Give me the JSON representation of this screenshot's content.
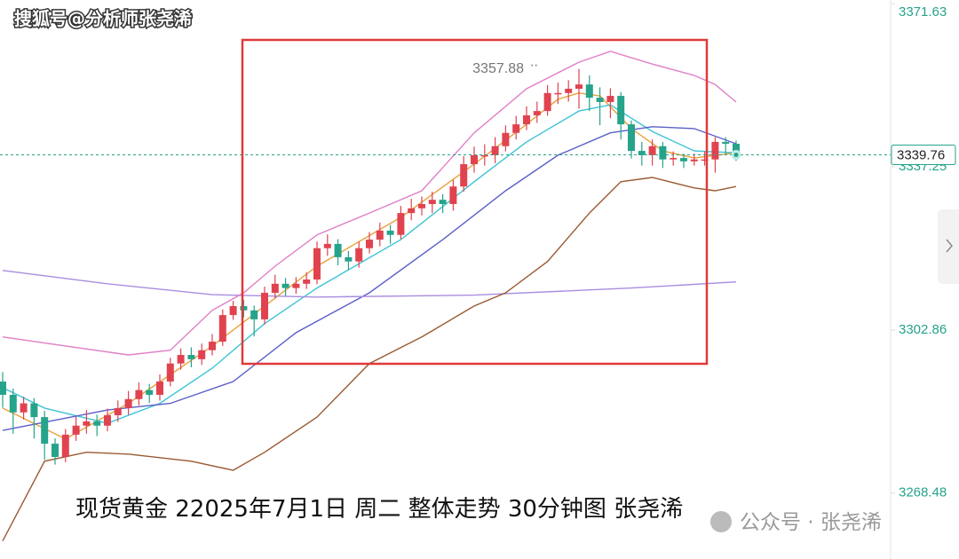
{
  "chart_data": {
    "type": "candlestick",
    "watermark": "搜狐号@分析师张尧浠",
    "caption": "现货黄金 22025年7月1日 周二 整体走势 30分钟图 张尧浠",
    "footer": "公众号 · 张尧浠",
    "up_color": "#e0434f",
    "down_color": "#26a38b",
    "ylim": [
      3254.6,
      3372.4
    ],
    "yticks": [
      3371.63,
      3337.25,
      3302.86,
      3268.48
    ],
    "open": [
      3292.0,
      3289.2,
      3285.5,
      3287.4,
      3284.5,
      3278.9,
      3276.1,
      3280.8,
      3282.7,
      3283.6,
      3282.7,
      3284.9,
      3286.4,
      3288.3,
      3290.2,
      3289.2,
      3292.0,
      3295.8,
      3297.6,
      3296.7,
      3298.6,
      3300.4,
      3306.0,
      3307.9,
      3307.0,
      3305.1,
      3310.7,
      3312.6,
      3311.7,
      3312.6,
      3313.5,
      3320.1,
      3321.0,
      3318.2,
      3317.3,
      3320.1,
      3321.9,
      3323.8,
      3322.9,
      3327.5,
      3328.5,
      3329.4,
      3330.3,
      3329.4,
      3333.1,
      3337.8,
      3339.7,
      3339.7,
      3341.6,
      3344.4,
      3346.2,
      3348.1,
      3349.0,
      3352.8,
      3352.8,
      3353.7,
      3354.6,
      3351.8,
      3350.9,
      3352.2,
      3346.2,
      3340.6,
      3339.7,
      3341.6,
      3338.8,
      3339.1,
      3338.4,
      3338.8,
      3338.8,
      3342.5,
      3342.1
    ],
    "high": [
      3294.0,
      3290.5,
      3288.8,
      3288.5,
      3285.8,
      3280.0,
      3282.0,
      3284.6,
      3286.0,
      3285.0,
      3286.3,
      3288.0,
      3290.0,
      3291.8,
      3291.5,
      3293.5,
      3297.0,
      3299.0,
      3299.2,
      3300.0,
      3302.0,
      3307.2,
      3309.0,
      3309.2,
      3308.0,
      3312.0,
      3314.5,
      3313.8,
      3314.0,
      3315.0,
      3321.5,
      3323.0,
      3322.0,
      3319.5,
      3321.5,
      3323.5,
      3325.5,
      3325.0,
      3329.0,
      3330.5,
      3331.0,
      3332.0,
      3331.5,
      3334.5,
      3339.5,
      3341.5,
      3342.0,
      3343.5,
      3346.0,
      3348.0,
      3350.0,
      3351.0,
      3354.5,
      3355.0,
      3355.5,
      3357.88,
      3356.5,
      3354.0,
      3353.8,
      3353.0,
      3347.0,
      3342.5,
      3343.0,
      3342.5,
      3340.5,
      3340.0,
      3340.0,
      3340.5,
      3343.5,
      3343.5,
      3342.8
    ],
    "low": [
      3286.5,
      3281.0,
      3284.0,
      3280.0,
      3275.5,
      3274.5,
      3275.0,
      3279.5,
      3281.0,
      3280.5,
      3281.5,
      3283.5,
      3285.0,
      3287.0,
      3287.5,
      3288.0,
      3291.0,
      3294.5,
      3295.0,
      3295.5,
      3297.5,
      3299.5,
      3305.0,
      3305.5,
      3301.5,
      3304.0,
      3309.5,
      3310.0,
      3310.5,
      3311.5,
      3312.5,
      3318.5,
      3316.5,
      3315.5,
      3316.0,
      3319.0,
      3320.5,
      3321.0,
      3322.0,
      3326.0,
      3327.0,
      3327.5,
      3327.5,
      3328.0,
      3332.0,
      3336.0,
      3337.5,
      3338.0,
      3340.5,
      3343.0,
      3345.0,
      3346.5,
      3348.0,
      3350.5,
      3351.0,
      3349.5,
      3349.0,
      3346.0,
      3347.5,
      3343.0,
      3339.0,
      3337.5,
      3337.5,
      3337.0,
      3337.5,
      3337.0,
      3337.5,
      3337.5,
      3336.0,
      3340.0,
      3338.5
    ],
    "close": [
      3289.2,
      3285.5,
      3287.4,
      3284.5,
      3278.9,
      3276.1,
      3280.8,
      3282.7,
      3283.6,
      3282.7,
      3284.9,
      3286.4,
      3288.3,
      3290.2,
      3289.2,
      3292.0,
      3295.8,
      3297.6,
      3296.7,
      3298.6,
      3300.4,
      3306.0,
      3307.9,
      3307.0,
      3305.1,
      3310.7,
      3312.6,
      3311.7,
      3312.6,
      3313.5,
      3320.1,
      3321.0,
      3318.2,
      3317.3,
      3320.1,
      3321.9,
      3323.8,
      3322.9,
      3327.5,
      3328.5,
      3329.4,
      3330.3,
      3329.4,
      3333.1,
      3337.8,
      3339.7,
      3339.7,
      3341.6,
      3344.4,
      3346.2,
      3348.1,
      3349.0,
      3352.8,
      3352.8,
      3353.7,
      3354.6,
      3351.8,
      3350.9,
      3352.2,
      3346.2,
      3340.6,
      3339.7,
      3341.6,
      3338.8,
      3339.1,
      3338.4,
      3338.8,
      3338.8,
      3342.5,
      3342.1,
      3339.76
    ],
    "overlays": [
      {
        "color": "#e8a13a",
        "x": [
          0,
          6,
          12,
          20,
          25,
          30,
          38,
          45,
          50,
          53,
          55,
          57,
          60,
          63,
          66,
          70
        ],
        "values": [
          3286.4,
          3279.9,
          3287.4,
          3299.5,
          3307.9,
          3316.3,
          3326.6,
          3337.8,
          3346.2,
          3351.5,
          3352.8,
          3352.2,
          3345.3,
          3340.6,
          3339.1,
          3340.2
        ]
      },
      {
        "color": "#3cc3d6",
        "x": [
          0,
          4,
          10,
          15,
          20,
          25,
          30,
          38,
          45,
          50,
          55,
          58,
          62,
          66,
          70
        ],
        "values": [
          3290.7,
          3286.4,
          3283.2,
          3287.4,
          3294.8,
          3304.2,
          3311.7,
          3321.9,
          3334.1,
          3342.5,
          3349.0,
          3350.3,
          3344.7,
          3340.6,
          3340.2
        ]
      },
      {
        "color": "#5a5fc8",
        "x": [
          0,
          10,
          16,
          22,
          28,
          35,
          42,
          48,
          53,
          58,
          62,
          66,
          70
        ],
        "values": [
          3281.7,
          3286.0,
          3287.4,
          3292.0,
          3302.3,
          3310.7,
          3321.9,
          3332.2,
          3339.7,
          3344.4,
          3345.7,
          3345.3,
          3342.1
        ]
      },
      {
        "color": "#a98ee0",
        "x": [
          0,
          10,
          20,
          30,
          45,
          60,
          70
        ],
        "values": [
          3315.4,
          3312.6,
          3310.3,
          3309.8,
          3310.2,
          3311.7,
          3313.0
        ]
      },
      {
        "color": "#e07fc6",
        "x": [
          0,
          6,
          12,
          16,
          20,
          23,
          26,
          30,
          35,
          40,
          45,
          50,
          55,
          58,
          62,
          66,
          68,
          70
        ],
        "values": [
          3301.4,
          3299.5,
          3297.6,
          3298.6,
          3307.0,
          3310.7,
          3316.3,
          3322.9,
          3327.5,
          3332.2,
          3344.4,
          3353.7,
          3359.3,
          3361.6,
          3358.9,
          3356.5,
          3354.6,
          3350.9
        ]
      },
      {
        "color": "#9a5a32",
        "x": [
          0,
          4,
          8,
          12,
          18,
          22,
          25,
          30,
          35,
          40,
          45,
          48,
          52,
          56,
          59,
          62,
          66,
          68,
          70
        ],
        "values": [
          3258.4,
          3275.2,
          3277.1,
          3276.7,
          3275.2,
          3273.3,
          3277.1,
          3284.5,
          3295.8,
          3301.4,
          3307.9,
          3310.7,
          3317.3,
          3327.5,
          3334.1,
          3335.0,
          3332.8,
          3332.2,
          3333.1
        ]
      }
    ]
  }
}
